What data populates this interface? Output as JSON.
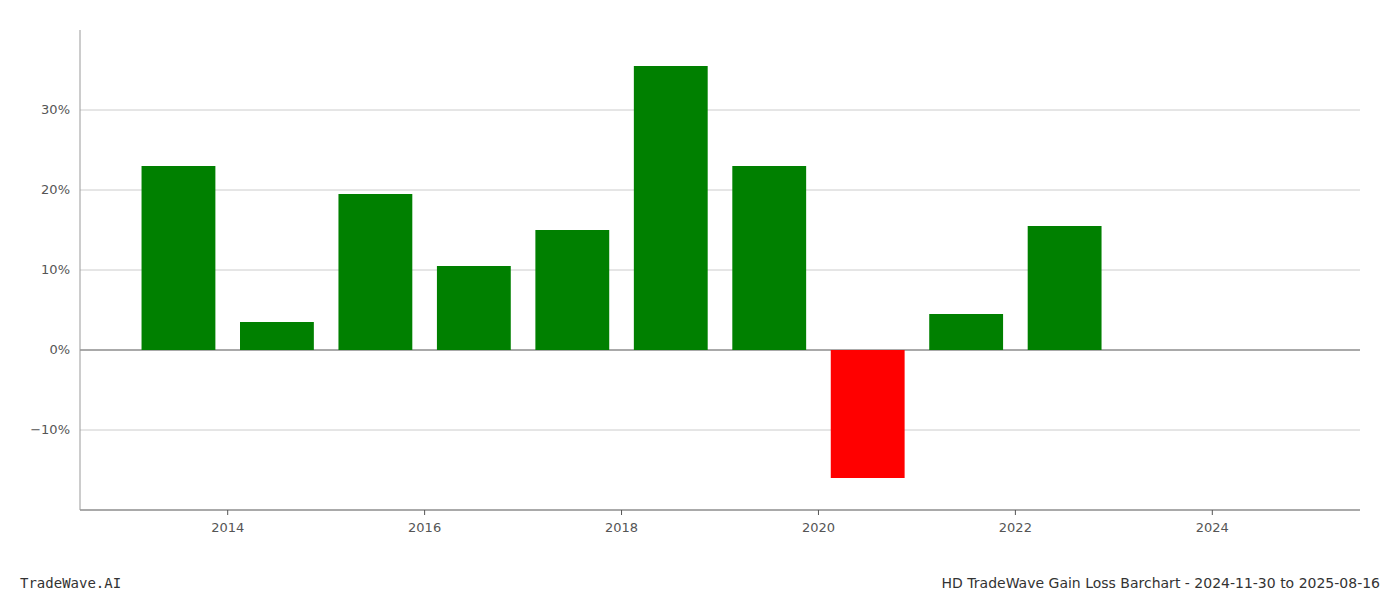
{
  "chart_data": {
    "type": "bar",
    "x": [
      2013.5,
      2014.5,
      2015.5,
      2016.5,
      2017.5,
      2018.5,
      2019.5,
      2020.5,
      2021.5,
      2022.5
    ],
    "values": [
      23.0,
      3.5,
      19.5,
      10.5,
      15.0,
      35.5,
      23.0,
      -16.0,
      4.5,
      15.5
    ],
    "colors": [
      "#008000",
      "#008000",
      "#008000",
      "#008000",
      "#008000",
      "#008000",
      "#008000",
      "#ff0000",
      "#008000",
      "#008000"
    ],
    "xlim": [
      2012.5,
      2025.5
    ],
    "xticks": [
      2014,
      2016,
      2018,
      2020,
      2022,
      2024
    ],
    "ylim": [
      -20,
      40
    ],
    "yticks": [
      {
        "value": -10,
        "label": "−10%"
      },
      {
        "value": 0,
        "label": "0%"
      },
      {
        "value": 10,
        "label": "10%"
      },
      {
        "value": 20,
        "label": "20%"
      },
      {
        "value": 30,
        "label": "30%"
      }
    ],
    "grid": true,
    "annotations": [
      "TradeWave.AI",
      "HD TradeWave Gain Loss Barchart - 2024-11-30 to 2025-08-16"
    ]
  }
}
